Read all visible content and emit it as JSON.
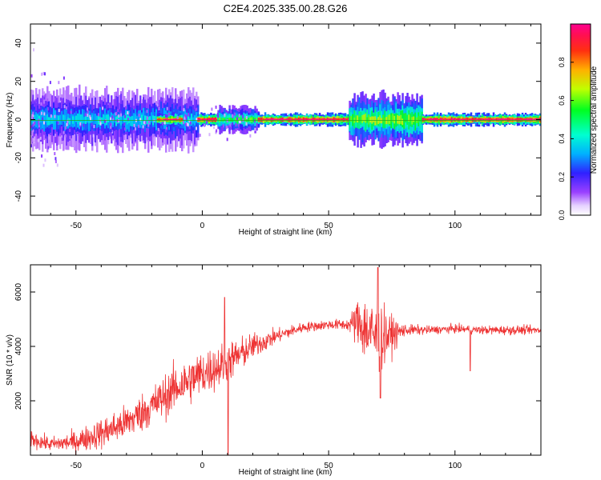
{
  "title": "C2E4.2025.335.00.28.G26",
  "colors": {
    "snr_line": "#ee3333",
    "frequency_line": "#dd2244",
    "axis": "#000000",
    "background": "#ffffff"
  },
  "chart_data": [
    {
      "type": "heatmap",
      "xlabel": "Height of straight line (km)",
      "ylabel": "Frequency (Hz)",
      "xlim": [
        -68,
        134
      ],
      "ylim": [
        -50,
        50
      ],
      "xticks": [
        -50,
        0,
        50,
        100
      ],
      "yticks": [
        -40,
        -20,
        0,
        20,
        40
      ],
      "grid": false,
      "colorbar": {
        "label": "Normalized spectral amplitude",
        "range": [
          0,
          1
        ],
        "ticks": [
          "0.0",
          "0.2",
          "0.4",
          "0.6",
          "0.8"
        ],
        "colormap": "rainbow (white-violet-blue-cyan-green-yellow-red-magenta)"
      },
      "segments": [
        {
          "x_from": -68,
          "x_to": -2,
          "center_hz": 0,
          "spread_hz": 4.5,
          "peak_amplitude": 0.35
        },
        {
          "x_from": -18,
          "x_to": -8,
          "center_hz": 0,
          "spread_hz": 1,
          "peak_amplitude": 0.9
        },
        {
          "x_from": -2,
          "x_to": 6,
          "center_hz": 0,
          "spread_hz": 1,
          "peak_amplitude": 1.0
        },
        {
          "x_from": 6,
          "x_to": 22,
          "center_hz": 0,
          "spread_hz": 2,
          "peak_amplitude": 0.55
        },
        {
          "x_from": 22,
          "x_to": 58,
          "center_hz": 0,
          "spread_hz": 1,
          "peak_amplitude": 1.0
        },
        {
          "x_from": 58,
          "x_to": 87,
          "center_hz": 0,
          "spread_hz": 4,
          "peak_amplitude": 0.6
        },
        {
          "x_from": 87,
          "x_to": 134,
          "center_hz": 0,
          "spread_hz": 1,
          "peak_amplitude": 1.0
        }
      ]
    },
    {
      "type": "line",
      "xlabel": "Height of straight line (km)",
      "ylabel": "SNR (10 * v/v)",
      "xlim": [
        -68,
        134
      ],
      "ylim": [
        0,
        7000
      ],
      "xticks": [
        -50,
        0,
        50,
        100
      ],
      "yticks": [
        2000,
        4000,
        6000
      ],
      "grid": false,
      "envelope": {
        "x": [
          -68,
          -60,
          -50,
          -40,
          -30,
          -20,
          -10,
          0,
          10,
          20,
          30,
          40,
          50,
          58,
          62,
          66,
          70,
          74,
          80,
          90,
          100,
          110,
          120,
          134
        ],
        "mean": [
          600,
          400,
          500,
          800,
          1200,
          1800,
          2500,
          3000,
          3400,
          4000,
          4400,
          4700,
          4800,
          4800,
          4900,
          4500,
          4300,
          4400,
          4600,
          4600,
          4650,
          4600,
          4600,
          4600
        ],
        "noise": [
          350,
          300,
          450,
          650,
          750,
          850,
          1000,
          1000,
          900,
          550,
          300,
          220,
          200,
          250,
          1200,
          1600,
          1500,
          900,
          250,
          180,
          180,
          180,
          200,
          180
        ]
      },
      "spikes": [
        {
          "x": 8.8,
          "value": 5800
        },
        {
          "x": 10.2,
          "value": 0
        },
        {
          "x": 69.5,
          "value": 6900
        },
        {
          "x": 70.5,
          "value": 2100
        },
        {
          "x": 106,
          "value": 3100
        }
      ]
    }
  ]
}
